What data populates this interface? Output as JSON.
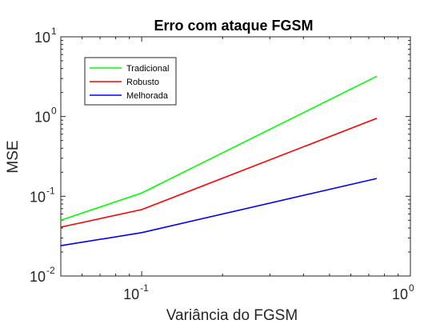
{
  "chart_data": {
    "type": "line",
    "title": "Erro com ataque FGSM",
    "xlabel": "Variância do FGSM",
    "ylabel": "MSE",
    "xscale": "log",
    "yscale": "log",
    "xlim": [
      0.05,
      1
    ],
    "ylim": [
      0.01,
      10
    ],
    "grid": false,
    "legend_position": "top-left",
    "x_ticks": [
      {
        "value": 0.1,
        "base": "10",
        "exp": "-1"
      },
      {
        "value": 1,
        "base": "10",
        "exp": "0"
      }
    ],
    "y_ticks": [
      {
        "value": 0.01,
        "base": "10",
        "exp": "-2"
      },
      {
        "value": 0.1,
        "base": "10",
        "exp": "-1"
      },
      {
        "value": 1,
        "base": "10",
        "exp": "0"
      },
      {
        "value": 10,
        "base": "10",
        "exp": "1"
      }
    ],
    "series": [
      {
        "name": "Tradicional",
        "color": "#00ff00",
        "x": [
          0.05,
          0.1,
          0.75
        ],
        "y": [
          0.05,
          0.11,
          3.2
        ]
      },
      {
        "name": "Robusto",
        "color": "#ff0000",
        "x": [
          0.05,
          0.1,
          0.75
        ],
        "y": [
          0.041,
          0.068,
          0.95
        ]
      },
      {
        "name": "Melhorada",
        "color": "#0000ff",
        "x": [
          0.05,
          0.1,
          0.75
        ],
        "y": [
          0.024,
          0.035,
          0.167
        ]
      }
    ]
  }
}
